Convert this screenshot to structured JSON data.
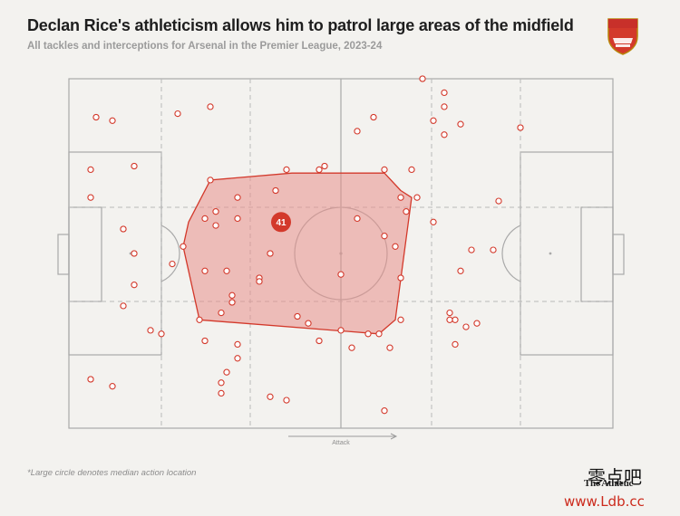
{
  "header": {
    "title": "Declan Rice's athleticism allows him to patrol large areas of the midfield",
    "subtitle": "All tackles and interceptions for Arsenal in the Premier League, 2023-24",
    "crest_text": "Arsenal"
  },
  "footer": {
    "footnote": "*Large circle denotes median action location",
    "brand": "The Athletic",
    "watermark_cn": "零点吧",
    "watermark_url": "www.Ldb.cc"
  },
  "colors": {
    "accent": "#d3392b",
    "hull_fill": "#e8908a",
    "pitch_line": "#a9a9a9",
    "background": "#f3f2ef"
  },
  "chart_data": {
    "type": "scatter",
    "title": "Declan Rice's athleticism allows him to patrol large areas of the midfield",
    "subtitle": "All tackles and interceptions for Arsenal in the Premier League, 2023-24",
    "xlabel": "Attack",
    "ylabel": "",
    "xlim": [
      0,
      100
    ],
    "ylim": [
      0,
      100
    ],
    "direction_label": "Attack",
    "median": {
      "x": 39,
      "y": 59,
      "count": 41,
      "label": "41"
    },
    "hull": [
      [
        26,
        71
      ],
      [
        41,
        73
      ],
      [
        58,
        73
      ],
      [
        61,
        68
      ],
      [
        63,
        66
      ],
      [
        60,
        31
      ],
      [
        57,
        27
      ],
      [
        24,
        31
      ],
      [
        21,
        52
      ],
      [
        22,
        59
      ]
    ],
    "points": [
      [
        5,
        89
      ],
      [
        8,
        88
      ],
      [
        4,
        74
      ],
      [
        20,
        90
      ],
      [
        26,
        92
      ],
      [
        4,
        66
      ],
      [
        12,
        75
      ],
      [
        10,
        57
      ],
      [
        26,
        71
      ],
      [
        31,
        66
      ],
      [
        38,
        68
      ],
      [
        40,
        74
      ],
      [
        25,
        60
      ],
      [
        27,
        62
      ],
      [
        31,
        60
      ],
      [
        12,
        50
      ],
      [
        27,
        58
      ],
      [
        19,
        47
      ],
      [
        35,
        43
      ],
      [
        21,
        52
      ],
      [
        24,
        31
      ],
      [
        10,
        35
      ],
      [
        12,
        41
      ],
      [
        35,
        42
      ],
      [
        30,
        38
      ],
      [
        29,
        45
      ],
      [
        25,
        45
      ],
      [
        30,
        36
      ],
      [
        28,
        33
      ],
      [
        37,
        50
      ],
      [
        42,
        32
      ],
      [
        15,
        28
      ],
      [
        17,
        27
      ],
      [
        25,
        25
      ],
      [
        31,
        24
      ],
      [
        31,
        20
      ],
      [
        29,
        16
      ],
      [
        28,
        13
      ],
      [
        28,
        10
      ],
      [
        4,
        14
      ],
      [
        8,
        12
      ],
      [
        37,
        9
      ],
      [
        40,
        8
      ],
      [
        46,
        74
      ],
      [
        47,
        75
      ],
      [
        53,
        60
      ],
      [
        58,
        55
      ],
      [
        61,
        66
      ],
      [
        60,
        52
      ],
      [
        57,
        27
      ],
      [
        53,
        85
      ],
      [
        56,
        89
      ],
      [
        58,
        74
      ],
      [
        63,
        74
      ],
      [
        64,
        66
      ],
      [
        61,
        43
      ],
      [
        61,
        31
      ],
      [
        59,
        23
      ],
      [
        52,
        23
      ],
      [
        46,
        25
      ],
      [
        44,
        30
      ],
      [
        55,
        27
      ],
      [
        50,
        28
      ],
      [
        58,
        5
      ],
      [
        62,
        62
      ],
      [
        69,
        84
      ],
      [
        72,
        87
      ],
      [
        67,
        88
      ],
      [
        69,
        96
      ],
      [
        65,
        100
      ],
      [
        69,
        92
      ],
      [
        83,
        86
      ],
      [
        67,
        59
      ],
      [
        79,
        65
      ],
      [
        78,
        51
      ],
      [
        74,
        51
      ],
      [
        72,
        45
      ],
      [
        71,
        31
      ],
      [
        70,
        33
      ],
      [
        70,
        31
      ],
      [
        73,
        29
      ],
      [
        75,
        30
      ],
      [
        71,
        24
      ],
      [
        50,
        44
      ]
    ]
  }
}
